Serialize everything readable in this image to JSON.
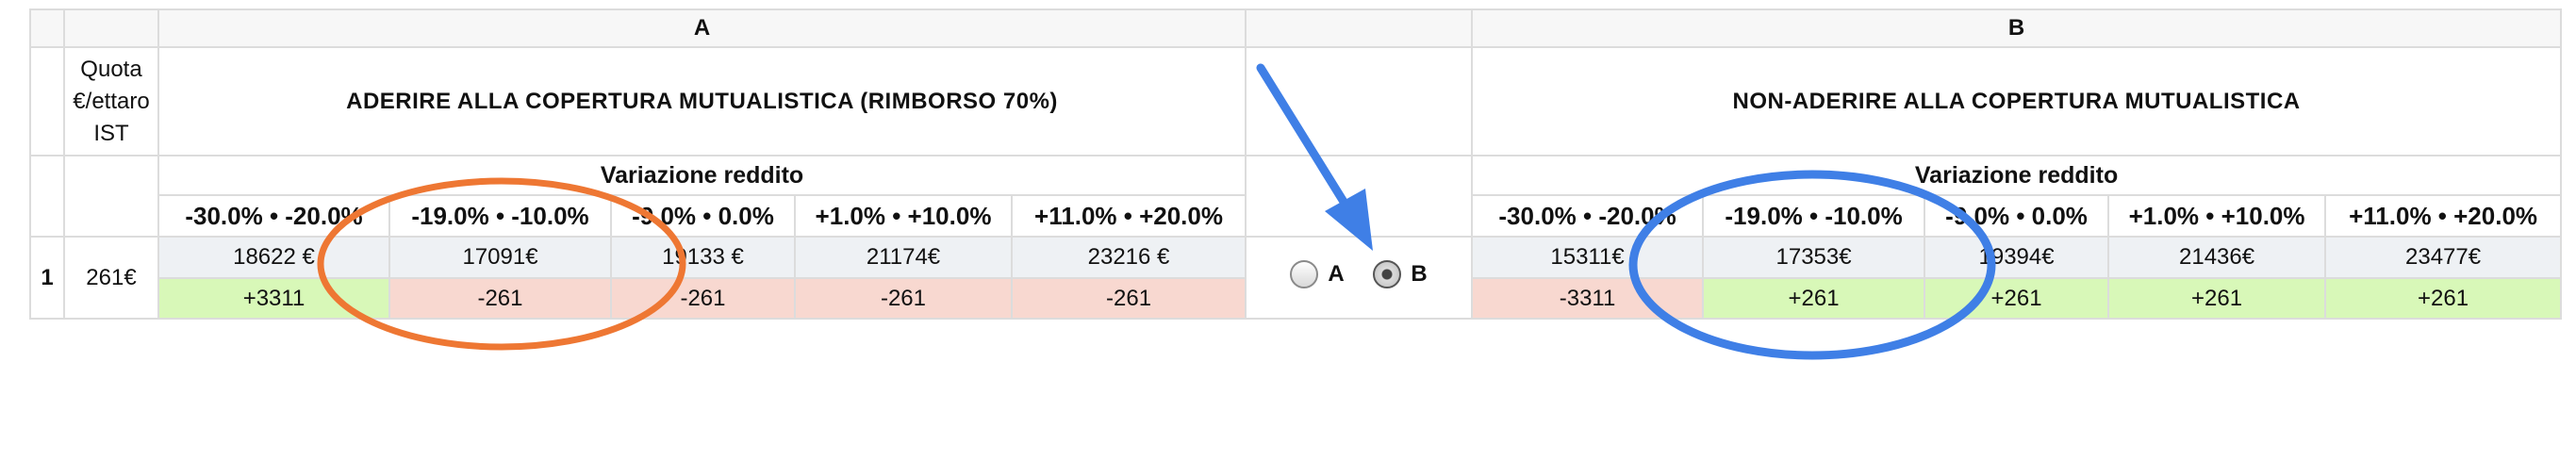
{
  "headers": {
    "option_a_letter": "A",
    "option_b_letter": "B",
    "quota_label": "Quota €/ettaro IST",
    "option_a_title": "ADERIRE ALLA COPERTURA MUTUALISTICA (RIMBORSO 70%)",
    "option_b_title": "NON-ADERIRE ALLA COPERTURA MUTUALISTICA",
    "variation_label": "Variazione reddito"
  },
  "ranges": [
    "-30.0% • -20.0%",
    "-19.0% • -10.0%",
    "-9.0% • 0.0%",
    "+1.0% • +10.0%",
    "+11.0% • +20.0%"
  ],
  "row": {
    "number": "1",
    "quota": "261€",
    "option_a": {
      "income": [
        "18622 €",
        "17091€",
        "19133 €",
        "21174€",
        "23216 €"
      ],
      "delta": [
        "+3311",
        "-261",
        "-261",
        "-261",
        "-261"
      ],
      "delta_sign": [
        "pos",
        "neg",
        "neg",
        "neg",
        "neg"
      ]
    },
    "option_b": {
      "income": [
        "15311€",
        "17353€",
        "19394€",
        "21436€",
        "23477€"
      ],
      "delta": [
        "-3311",
        "+261",
        "+261",
        "+261",
        "+261"
      ],
      "delta_sign": [
        "neg",
        "pos",
        "pos",
        "pos",
        "pos"
      ]
    }
  },
  "choice": {
    "label_a": "A",
    "label_b": "B",
    "selected": "B"
  },
  "annotations": {
    "orange_ellipse_color": "#ee7733",
    "blue_ellipse_color": "#3f7fe6",
    "arrow_color": "#3f7fe6"
  }
}
